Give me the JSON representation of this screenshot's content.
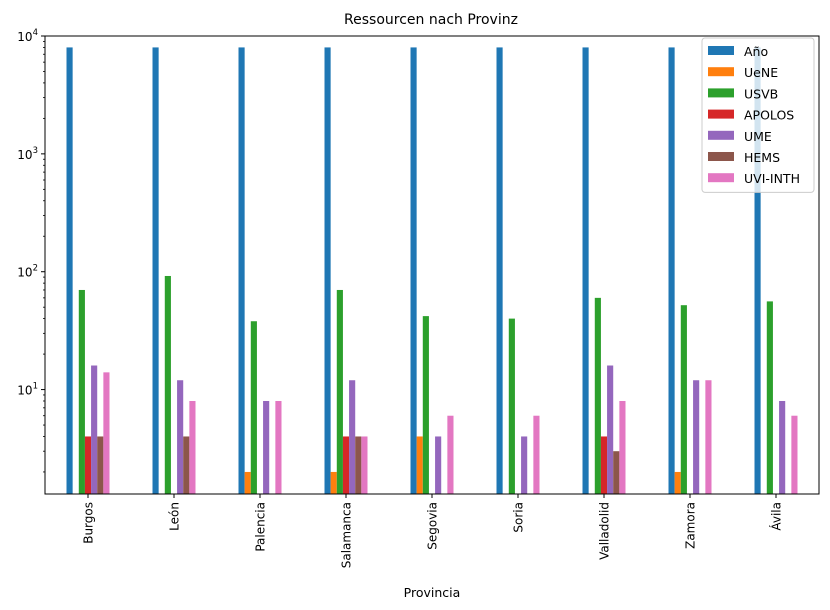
{
  "chart_data": {
    "type": "bar",
    "title": "Ressourcen nach Provinz",
    "xlabel": "Provincia",
    "ylabel": "",
    "yscale": "log",
    "ylim": [
      1.3,
      10000
    ],
    "grid": false,
    "legend_position": "top-right",
    "yticks": [
      {
        "value": 10,
        "label": "10^1",
        "base": "10",
        "exp": "1"
      },
      {
        "value": 100,
        "label": "10^2",
        "base": "10",
        "exp": "2"
      },
      {
        "value": 1000,
        "label": "10^3",
        "base": "10",
        "exp": "3"
      },
      {
        "value": 10000,
        "label": "10^4",
        "base": "10",
        "exp": "4"
      }
    ],
    "categories": [
      "Burgos",
      "León",
      "Palencia",
      "Salamanca",
      "Segovia",
      "Soria",
      "Valladolid",
      "Zamora",
      "Ávila"
    ],
    "series": [
      {
        "name": "Año",
        "color": "#1f77b4",
        "values": [
          8000,
          8000,
          8000,
          8000,
          8000,
          8000,
          8000,
          8000,
          8000
        ]
      },
      {
        "name": "UeNE",
        "color": "#ff7f0e",
        "values": [
          null,
          null,
          2,
          2,
          4,
          null,
          null,
          2,
          null
        ]
      },
      {
        "name": "USVB",
        "color": "#2ca02c",
        "values": [
          70,
          92,
          38,
          70,
          42,
          40,
          60,
          52,
          56
        ]
      },
      {
        "name": "APOLOS",
        "color": "#d62728",
        "values": [
          4,
          null,
          null,
          4,
          null,
          null,
          4,
          null,
          null
        ]
      },
      {
        "name": "UME",
        "color": "#9467bd",
        "values": [
          16,
          12,
          8,
          12,
          4,
          4,
          16,
          12,
          8
        ]
      },
      {
        "name": "HEMS",
        "color": "#8c564b",
        "values": [
          4,
          4,
          null,
          4,
          null,
          null,
          3,
          null,
          null
        ]
      },
      {
        "name": "UVI-INTH",
        "color": "#e377c2",
        "values": [
          14,
          8,
          8,
          4,
          6,
          6,
          8,
          12,
          6
        ]
      }
    ]
  }
}
